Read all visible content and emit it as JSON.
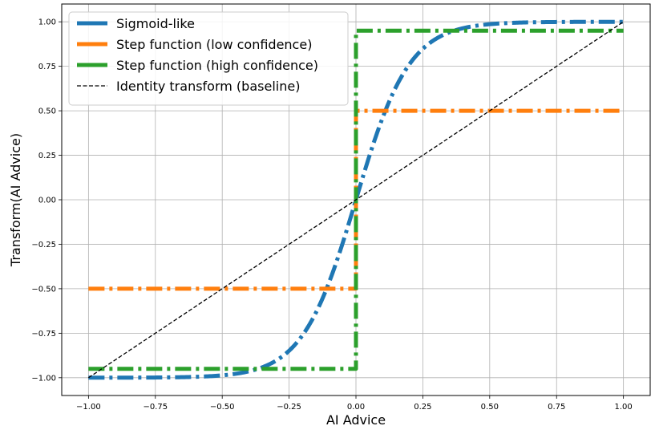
{
  "chart_data": {
    "type": "line",
    "title": "",
    "xlabel": "AI Advice",
    "ylabel": "Transform(AI Advice)",
    "xlim": [
      -1.1,
      1.1
    ],
    "ylim": [
      -1.1,
      1.1
    ],
    "xticks": [
      -1.0,
      -0.75,
      -0.5,
      -0.25,
      0.0,
      0.25,
      0.5,
      0.75,
      1.0
    ],
    "xtick_labels": [
      "−1.00",
      "−0.75",
      "−0.50",
      "−0.25",
      "0.00",
      "0.25",
      "0.50",
      "0.75",
      "1.00"
    ],
    "yticks": [
      -1.0,
      -0.75,
      -0.5,
      -0.25,
      0.0,
      0.25,
      0.5,
      0.75,
      1.0
    ],
    "ytick_labels": [
      "−1.00",
      "−0.75",
      "−0.50",
      "−0.25",
      "0.00",
      "0.25",
      "0.50",
      "0.75",
      "1.00"
    ],
    "grid": true,
    "legend_position": "top-left",
    "series": [
      {
        "name": "Sigmoid-like",
        "color": "#1f77b4",
        "linestyle": "dashdot",
        "function": "tanh(5x)",
        "x": [
          -1.0,
          -0.75,
          -0.5,
          -0.35,
          -0.25,
          -0.15,
          -0.1,
          -0.05,
          0.0,
          0.05,
          0.1,
          0.15,
          0.25,
          0.35,
          0.5,
          0.75,
          1.0
        ],
        "y": [
          -1.0,
          -1.0,
          -0.99,
          -0.94,
          -0.85,
          -0.64,
          -0.46,
          -0.24,
          0.0,
          0.24,
          0.46,
          0.64,
          0.85,
          0.94,
          0.99,
          1.0,
          1.0
        ]
      },
      {
        "name": "Step function (low confidence)",
        "color": "#ff7f0e",
        "linestyle": "dashdot",
        "x": [
          -1.0,
          0.0,
          0.0,
          1.0
        ],
        "y": [
          -0.5,
          -0.5,
          0.5,
          0.5
        ]
      },
      {
        "name": "Step function (high confidence)",
        "color": "#2ca02c",
        "linestyle": "dashdot",
        "x": [
          -1.0,
          0.0,
          0.0,
          1.0
        ],
        "y": [
          -0.95,
          -0.95,
          0.95,
          0.95
        ]
      },
      {
        "name": "Identity transform (baseline)",
        "color": "#000000",
        "linestyle": "dashed",
        "x": [
          -1.0,
          1.0
        ],
        "y": [
          -1.0,
          1.0
        ]
      }
    ]
  }
}
